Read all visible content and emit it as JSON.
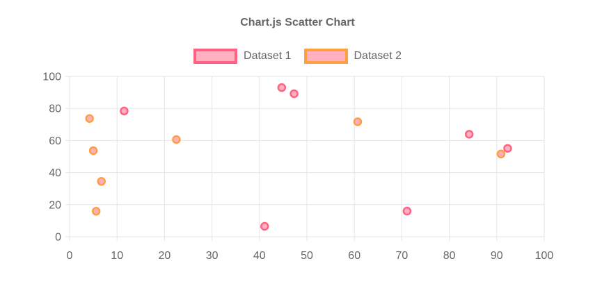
{
  "title": "Chart.js Scatter Chart",
  "legend": {
    "items": [
      {
        "label": "Dataset 1",
        "border_color": "#FF6384",
        "fill_color": "#FFB1C2"
      },
      {
        "label": "Dataset 2",
        "border_color": "#FF9F40",
        "fill_color": "#FFB1C2"
      }
    ]
  },
  "chart_data": {
    "type": "scatter",
    "title": "Chart.js Scatter Chart",
    "xlabel": "",
    "ylabel": "",
    "xlim": [
      0,
      100
    ],
    "ylim": [
      0,
      100
    ],
    "x_ticks": [
      0,
      10,
      20,
      30,
      40,
      50,
      60,
      70,
      80,
      90,
      100
    ],
    "y_ticks": [
      0,
      20,
      40,
      60,
      80,
      100
    ],
    "grid": true,
    "legend_position": "top",
    "background": "#FFFFFF",
    "text_color": "#666666",
    "grid_color": "#E5E5E5",
    "series": [
      {
        "name": "Dataset 1",
        "border_color": "#FF6384",
        "fill_color": "#FFB1C2",
        "points": [
          {
            "x": 11.5,
            "y": 78.4
          },
          {
            "x": 44.7,
            "y": 93.0
          },
          {
            "x": 47.3,
            "y": 89.2
          },
          {
            "x": 41.1,
            "y": 6.5
          },
          {
            "x": 71.1,
            "y": 16.0
          },
          {
            "x": 84.2,
            "y": 63.9
          },
          {
            "x": 92.3,
            "y": 55.1
          }
        ]
      },
      {
        "name": "Dataset 2",
        "border_color": "#FF9F40",
        "fill_color": "#FFB1C2",
        "points": [
          {
            "x": 4.2,
            "y": 73.7
          },
          {
            "x": 5.0,
            "y": 53.7
          },
          {
            "x": 6.7,
            "y": 34.5
          },
          {
            "x": 5.6,
            "y": 15.9
          },
          {
            "x": 22.5,
            "y": 60.6
          },
          {
            "x": 60.7,
            "y": 71.7
          },
          {
            "x": 90.9,
            "y": 51.6
          }
        ]
      }
    ]
  }
}
